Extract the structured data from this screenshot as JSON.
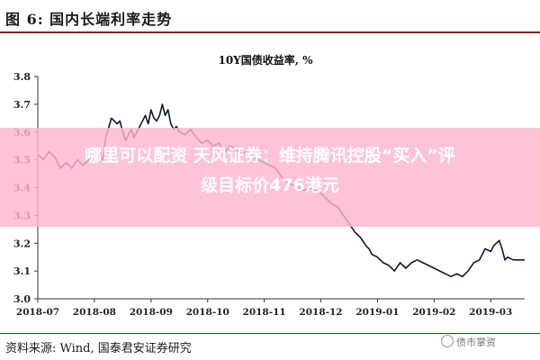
{
  "figure": {
    "title": "图 6:  国内长端利率走势",
    "source": "资料来源:   Wind,  国泰君安证券研究",
    "watermark": "债市掌资"
  },
  "overlay": {
    "line1": "哪里可以配资 天风证券：维持腾讯控股“买入”评",
    "line2": "级目标价476港元"
  },
  "chart_data": {
    "type": "line",
    "title": "10Y国债收益率,  %",
    "xlabel": "",
    "ylabel": "",
    "ylim": [
      3.0,
      3.8
    ],
    "yticks": [
      "3.0",
      "3.1",
      "3.2",
      "3.3",
      "3.4",
      "3.5",
      "3.6",
      "3.7",
      "3.8"
    ],
    "xticks": [
      "2018-07",
      "2018-08",
      "2018-09",
      "2018-10",
      "2018-11",
      "2018-12",
      "2019-01",
      "2019-02",
      "2019-03"
    ],
    "grid": false,
    "legend": "none",
    "color": "#0d1a33",
    "series": [
      {
        "values": [
          [
            0.0,
            3.52
          ],
          [
            0.1,
            3.5
          ],
          [
            0.2,
            3.53
          ],
          [
            0.3,
            3.51
          ],
          [
            0.4,
            3.47
          ],
          [
            0.5,
            3.49
          ],
          [
            0.6,
            3.47
          ],
          [
            0.7,
            3.5
          ],
          [
            0.8,
            3.48
          ],
          [
            0.9,
            3.5
          ],
          [
            1.0,
            3.53
          ],
          [
            1.1,
            3.52
          ],
          [
            1.15,
            3.5
          ],
          [
            1.2,
            3.58
          ],
          [
            1.3,
            3.65
          ],
          [
            1.4,
            3.63
          ],
          [
            1.45,
            3.64
          ],
          [
            1.5,
            3.6
          ],
          [
            1.55,
            3.57
          ],
          [
            1.6,
            3.59
          ],
          [
            1.65,
            3.61
          ],
          [
            1.7,
            3.58
          ],
          [
            1.8,
            3.62
          ],
          [
            1.85,
            3.64
          ],
          [
            1.9,
            3.66
          ],
          [
            1.95,
            3.63
          ],
          [
            2.0,
            3.68
          ],
          [
            2.05,
            3.65
          ],
          [
            2.1,
            3.64
          ],
          [
            2.15,
            3.66
          ],
          [
            2.2,
            3.7
          ],
          [
            2.25,
            3.66
          ],
          [
            2.3,
            3.68
          ],
          [
            2.35,
            3.63
          ],
          [
            2.4,
            3.61
          ],
          [
            2.45,
            3.62
          ],
          [
            2.5,
            3.6
          ],
          [
            2.6,
            3.59
          ],
          [
            2.7,
            3.61
          ],
          [
            2.8,
            3.58
          ],
          [
            2.9,
            3.56
          ],
          [
            3.0,
            3.57
          ],
          [
            3.1,
            3.55
          ],
          [
            3.2,
            3.56
          ],
          [
            3.3,
            3.53
          ],
          [
            3.4,
            3.55
          ],
          [
            3.5,
            3.54
          ],
          [
            3.6,
            3.52
          ],
          [
            3.7,
            3.53
          ],
          [
            3.8,
            3.51
          ],
          [
            3.9,
            3.5
          ],
          [
            4.0,
            3.49
          ],
          [
            4.1,
            3.48
          ],
          [
            4.2,
            3.47
          ],
          [
            4.3,
            3.44
          ],
          [
            4.4,
            3.42
          ],
          [
            4.5,
            3.41
          ],
          [
            4.6,
            3.4
          ],
          [
            4.7,
            3.39
          ],
          [
            4.8,
            3.4
          ],
          [
            4.9,
            3.39
          ],
          [
            5.0,
            3.38
          ],
          [
            5.1,
            3.36
          ],
          [
            5.2,
            3.34
          ],
          [
            5.3,
            3.33
          ],
          [
            5.4,
            3.3
          ],
          [
            5.5,
            3.27
          ],
          [
            5.6,
            3.24
          ],
          [
            5.7,
            3.22
          ],
          [
            5.8,
            3.19
          ],
          [
            5.85,
            3.18
          ],
          [
            5.9,
            3.16
          ],
          [
            6.0,
            3.15
          ],
          [
            6.1,
            3.13
          ],
          [
            6.2,
            3.12
          ],
          [
            6.3,
            3.1
          ],
          [
            6.4,
            3.13
          ],
          [
            6.5,
            3.11
          ],
          [
            6.6,
            3.13
          ],
          [
            6.7,
            3.14
          ],
          [
            6.8,
            3.13
          ],
          [
            6.9,
            3.12
          ],
          [
            7.0,
            3.11
          ],
          [
            7.1,
            3.1
          ],
          [
            7.2,
            3.09
          ],
          [
            7.3,
            3.08
          ],
          [
            7.4,
            3.09
          ],
          [
            7.5,
            3.08
          ],
          [
            7.6,
            3.1
          ],
          [
            7.7,
            3.13
          ],
          [
            7.8,
            3.14
          ],
          [
            7.9,
            3.18
          ],
          [
            8.0,
            3.17
          ],
          [
            8.05,
            3.19
          ],
          [
            8.1,
            3.2
          ],
          [
            8.15,
            3.21
          ],
          [
            8.2,
            3.18
          ],
          [
            8.25,
            3.14
          ],
          [
            8.3,
            3.15
          ],
          [
            8.4,
            3.14
          ],
          [
            8.5,
            3.14
          ],
          [
            8.6,
            3.14
          ]
        ]
      }
    ]
  }
}
